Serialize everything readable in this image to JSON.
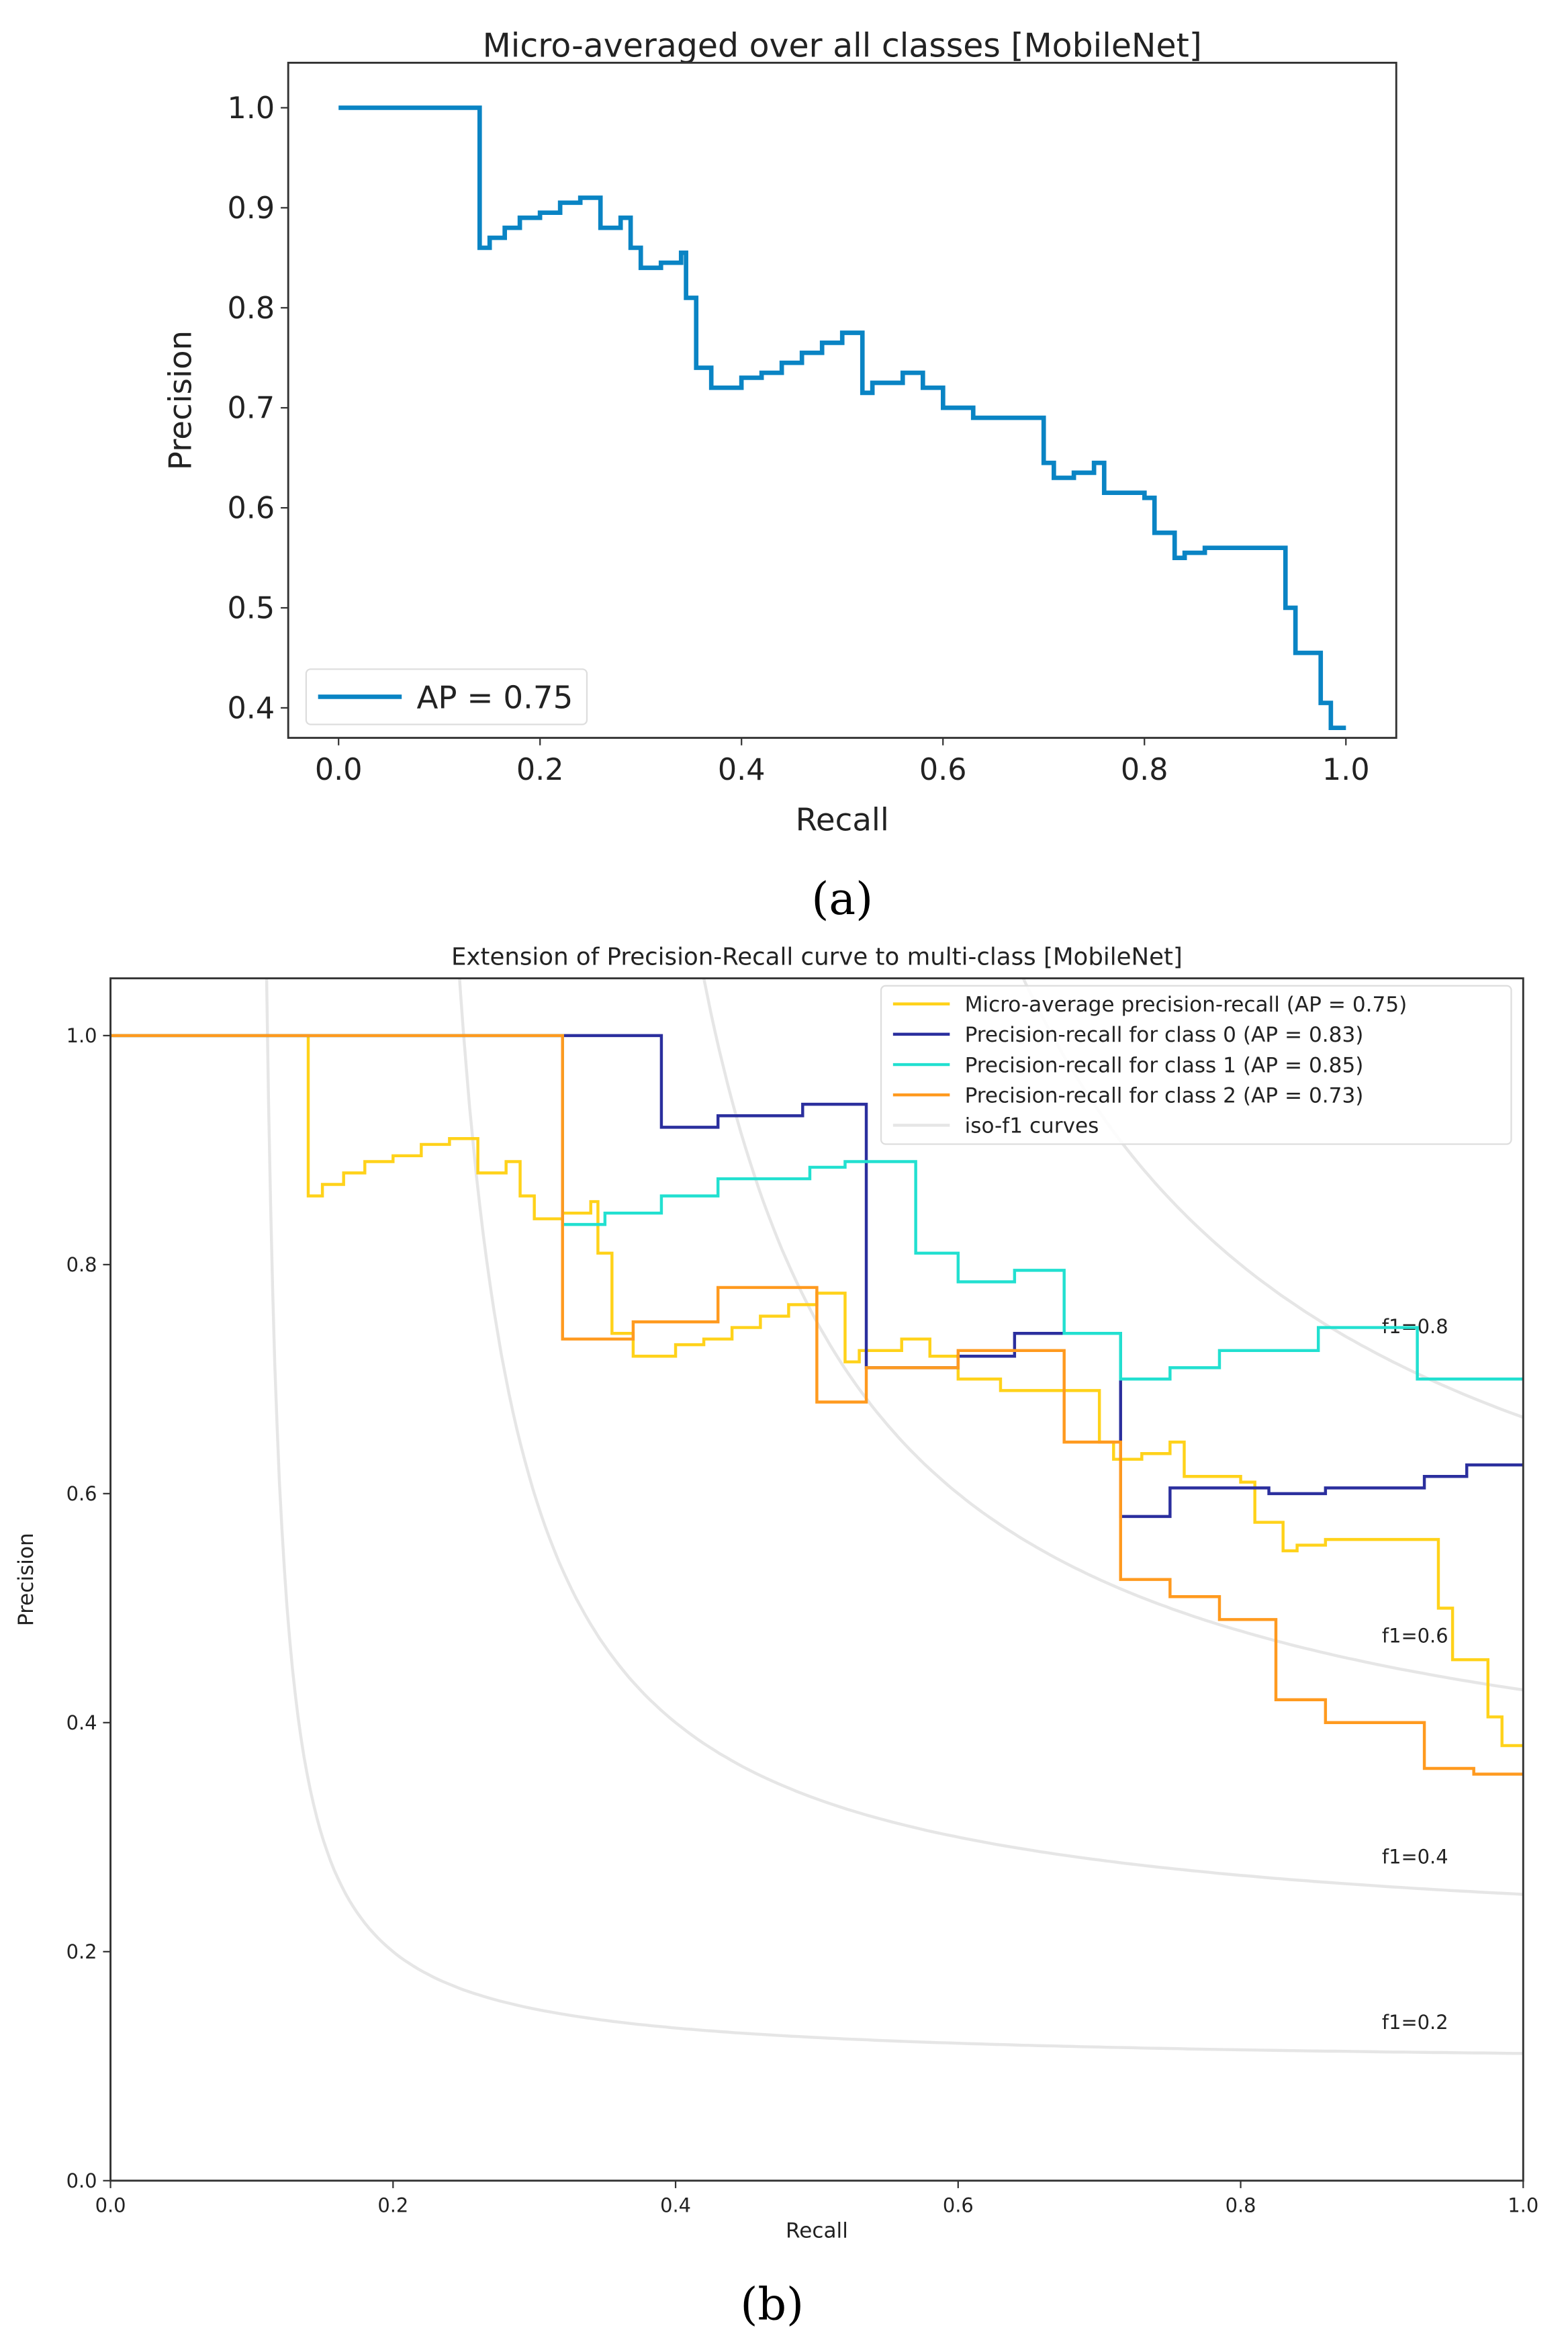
{
  "chart_data": [
    {
      "type": "line",
      "drawstyle": "steps-post",
      "title": "Micro-averaged over all classes [MobileNet]",
      "xlabel": "Recall",
      "ylabel": "Precision",
      "xlim": [
        -0.05,
        1.05
      ],
      "ylim": [
        0.37,
        1.045
      ],
      "xticks": [
        "0.0",
        "0.2",
        "0.4",
        "0.6",
        "0.8",
        "1.0"
      ],
      "yticks": [
        "0.4",
        "0.5",
        "0.6",
        "0.7",
        "0.8",
        "0.9",
        "1.0"
      ],
      "legend_position": "lower-left",
      "caption": "(a)",
      "series": [
        {
          "name": "AP = 0.75",
          "color": "#0a84c4",
          "points": [
            [
              0,
              1
            ],
            [
              0.14,
              0.86
            ],
            [
              0.15,
              0.87
            ],
            [
              0.165,
              0.88
            ],
            [
              0.18,
              0.89
            ],
            [
              0.2,
              0.895
            ],
            [
              0.22,
              0.905
            ],
            [
              0.24,
              0.91
            ],
            [
              0.26,
              0.88
            ],
            [
              0.28,
              0.89
            ],
            [
              0.29,
              0.86
            ],
            [
              0.3,
              0.84
            ],
            [
              0.32,
              0.845
            ],
            [
              0.34,
              0.855
            ],
            [
              0.345,
              0.81
            ],
            [
              0.355,
              0.74
            ],
            [
              0.37,
              0.72
            ],
            [
              0.4,
              0.73
            ],
            [
              0.42,
              0.735
            ],
            [
              0.44,
              0.745
            ],
            [
              0.46,
              0.755
            ],
            [
              0.48,
              0.765
            ],
            [
              0.5,
              0.775
            ],
            [
              0.52,
              0.715
            ],
            [
              0.53,
              0.725
            ],
            [
              0.56,
              0.735
            ],
            [
              0.58,
              0.72
            ],
            [
              0.6,
              0.7
            ],
            [
              0.63,
              0.69
            ],
            [
              0.68,
              0.69
            ],
            [
              0.7,
              0.645
            ],
            [
              0.71,
              0.63
            ],
            [
              0.73,
              0.635
            ],
            [
              0.75,
              0.645
            ],
            [
              0.76,
              0.615
            ],
            [
              0.8,
              0.61
            ],
            [
              0.81,
              0.575
            ],
            [
              0.83,
              0.55
            ],
            [
              0.84,
              0.555
            ],
            [
              0.86,
              0.56
            ],
            [
              0.94,
              0.5
            ],
            [
              0.95,
              0.455
            ],
            [
              0.975,
              0.405
            ],
            [
              0.985,
              0.38
            ],
            [
              1.0,
              0.38
            ]
          ]
        }
      ]
    },
    {
      "type": "line",
      "drawstyle": "steps-post",
      "title": "Extension of Precision-Recall curve to multi-class [MobileNet]",
      "xlabel": "Recall",
      "ylabel": "Precision",
      "xlim": [
        0,
        1
      ],
      "ylim": [
        0,
        1.05
      ],
      "xticks": [
        "0.0",
        "0.2",
        "0.4",
        "0.6",
        "0.8",
        "1.0"
      ],
      "yticks": [
        "0.0",
        "0.2",
        "0.4",
        "0.6",
        "0.8",
        "1.0"
      ],
      "legend_position": "top-right",
      "caption": "(b)",
      "iso_f1": {
        "name": "iso-f1 curves",
        "color": "#e6e6e6",
        "values": [
          0.2,
          0.4,
          0.6,
          0.8
        ],
        "labels": [
          "f1=0.2",
          "f1=0.4",
          "f1=0.6",
          "f1=0.8"
        ]
      },
      "series": [
        {
          "name": "Micro-average precision-recall (AP = 0.75)",
          "color": "#ffd21a",
          "points": [
            [
              0,
              1
            ],
            [
              0.14,
              0.86
            ],
            [
              0.15,
              0.87
            ],
            [
              0.165,
              0.88
            ],
            [
              0.18,
              0.89
            ],
            [
              0.2,
              0.895
            ],
            [
              0.22,
              0.905
            ],
            [
              0.24,
              0.91
            ],
            [
              0.26,
              0.88
            ],
            [
              0.28,
              0.89
            ],
            [
              0.29,
              0.86
            ],
            [
              0.3,
              0.84
            ],
            [
              0.32,
              0.845
            ],
            [
              0.34,
              0.855
            ],
            [
              0.345,
              0.81
            ],
            [
              0.355,
              0.74
            ],
            [
              0.37,
              0.72
            ],
            [
              0.4,
              0.73
            ],
            [
              0.42,
              0.735
            ],
            [
              0.44,
              0.745
            ],
            [
              0.46,
              0.755
            ],
            [
              0.48,
              0.765
            ],
            [
              0.5,
              0.775
            ],
            [
              0.52,
              0.715
            ],
            [
              0.53,
              0.725
            ],
            [
              0.56,
              0.735
            ],
            [
              0.58,
              0.72
            ],
            [
              0.6,
              0.7
            ],
            [
              0.63,
              0.69
            ],
            [
              0.68,
              0.69
            ],
            [
              0.7,
              0.645
            ],
            [
              0.71,
              0.63
            ],
            [
              0.73,
              0.635
            ],
            [
              0.75,
              0.645
            ],
            [
              0.76,
              0.615
            ],
            [
              0.8,
              0.61
            ],
            [
              0.81,
              0.575
            ],
            [
              0.83,
              0.55
            ],
            [
              0.84,
              0.555
            ],
            [
              0.86,
              0.56
            ],
            [
              0.94,
              0.5
            ],
            [
              0.95,
              0.455
            ],
            [
              0.975,
              0.405
            ],
            [
              0.985,
              0.38
            ],
            [
              1.0,
              0.38
            ]
          ]
        },
        {
          "name": "Precision-recall for class 0 (AP = 0.83)",
          "color": "#2b2f9e",
          "points": [
            [
              0,
              1
            ],
            [
              0.39,
              0.92
            ],
            [
              0.43,
              0.93
            ],
            [
              0.49,
              0.94
            ],
            [
              0.535,
              0.71
            ],
            [
              0.6,
              0.72
            ],
            [
              0.64,
              0.74
            ],
            [
              0.715,
              0.58
            ],
            [
              0.75,
              0.605
            ],
            [
              0.82,
              0.6
            ],
            [
              0.86,
              0.605
            ],
            [
              0.93,
              0.615
            ],
            [
              0.96,
              0.625
            ],
            [
              1.0,
              0.625
            ]
          ]
        },
        {
          "name": "Precision-recall for class 1 (AP = 0.85)",
          "color": "#22e0d0",
          "points": [
            [
              0,
              1
            ],
            [
              0.32,
              0.835
            ],
            [
              0.35,
              0.845
            ],
            [
              0.39,
              0.86
            ],
            [
              0.43,
              0.875
            ],
            [
              0.495,
              0.885
            ],
            [
              0.52,
              0.89
            ],
            [
              0.57,
              0.81
            ],
            [
              0.6,
              0.785
            ],
            [
              0.64,
              0.795
            ],
            [
              0.675,
              0.74
            ],
            [
              0.715,
              0.7
            ],
            [
              0.75,
              0.71
            ],
            [
              0.785,
              0.725
            ],
            [
              0.855,
              0.745
            ],
            [
              0.925,
              0.7
            ],
            [
              1.0,
              0.7
            ]
          ]
        },
        {
          "name": "Precision-recall for class 2 (AP = 0.73)",
          "color": "#ff9a1f",
          "points": [
            [
              0,
              1
            ],
            [
              0.32,
              0.735
            ],
            [
              0.37,
              0.75
            ],
            [
              0.43,
              0.78
            ],
            [
              0.5,
              0.68
            ],
            [
              0.535,
              0.71
            ],
            [
              0.6,
              0.725
            ],
            [
              0.675,
              0.645
            ],
            [
              0.715,
              0.525
            ],
            [
              0.75,
              0.51
            ],
            [
              0.785,
              0.49
            ],
            [
              0.825,
              0.42
            ],
            [
              0.86,
              0.4
            ],
            [
              0.93,
              0.36
            ],
            [
              0.965,
              0.355
            ],
            [
              1.0,
              0.355
            ]
          ]
        }
      ]
    }
  ]
}
